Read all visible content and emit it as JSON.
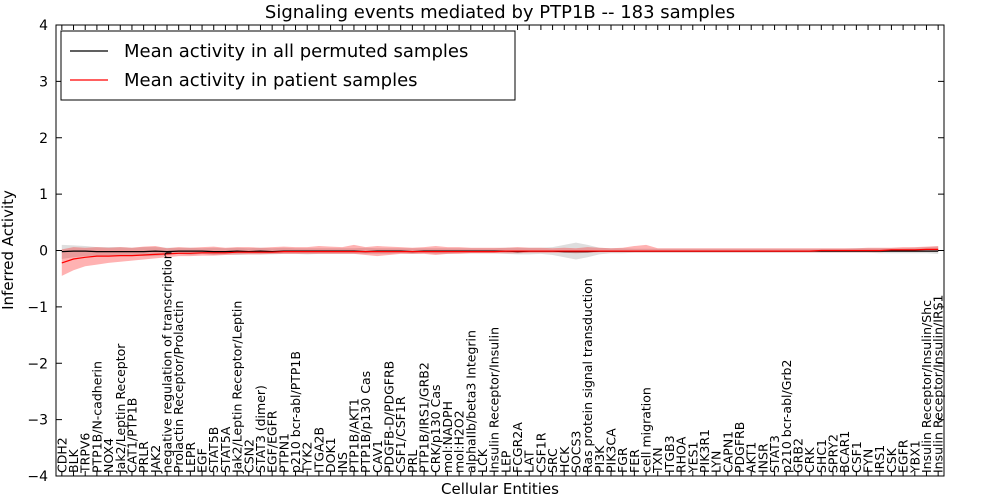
{
  "chart_data": {
    "type": "line",
    "title": "Signaling events mediated by PTP1B -- 183 samples",
    "xlabel": "Cellular Entities",
    "ylabel": "Inferred Activity",
    "ylim": [
      -4,
      4
    ],
    "yticks": [
      -4,
      -3,
      -2,
      -1,
      0,
      1,
      2,
      3,
      4
    ],
    "grid": false,
    "legend_position": "top-left",
    "categories": [
      "CDH2",
      "BLK",
      "TRPV6",
      "PTP1B/N-cadherin",
      "NOX4",
      "Jak2/Leptin Receptor",
      "CAT1/PTP1B",
      "PRLR",
      "JAK2",
      "negative regulation of transcription",
      "Prolactin Receptor/Prolactin",
      "LEPR",
      "EGF",
      "STAT5B",
      "STAT5A",
      "Jak2/Leptin Receptor/Leptin",
      "CSN2",
      "STAT3 (dimer)",
      "EGF/EGFR",
      "PTPN1",
      "p210 bcr-abl/PTP1B",
      "TYK2",
      "ITGA2B",
      "DOK1",
      "INS",
      "PTP1B/AKT1",
      "PTP1B/p130 Cas",
      "CAV1",
      "PDGFB-D/PDGFRB",
      "CSF1/CSF1R",
      "PRL",
      "PTP1B/IRS1/GRB2",
      "CRK/p130 Cas",
      "mol:NADPH",
      "mol:H2O2",
      "alphaIIb/beta3 Integrin",
      "LCK",
      "Insulin Receptor/Insulin",
      "LEP",
      "FCGR2A",
      "LAT",
      "CSF1R",
      "SRC",
      "HCK",
      "SOCS3",
      "Ras protein signal transduction",
      "PI3K",
      "PIK3CA",
      "FGR",
      "FER",
      "cell migration",
      "TXN",
      "ITGB3",
      "RHOA",
      "YES1",
      "PIK3R1",
      "LYN",
      "CAPN1",
      "PDGFRB",
      "AKT1",
      "INSR",
      "STAT3",
      "p210 bcr-abl/Grb2",
      "GRB2",
      "CRK",
      "SHC1",
      "SPRY2",
      "BCAR1",
      "CSF1",
      "FYN",
      "IRS1",
      "CSK",
      "EGFR",
      "YBX1",
      "Insulin Receptor/Insulin/Shc",
      "Insulin Receptor/Insulin/IRS1"
    ],
    "series": [
      {
        "name": "Mean activity in all permuted samples",
        "color": "#000000",
        "values": [
          -0.02,
          -0.01,
          -0.01,
          -0.02,
          -0.02,
          -0.02,
          -0.02,
          -0.02,
          -0.01,
          -0.02,
          -0.01,
          -0.01,
          -0.01,
          -0.02,
          -0.02,
          -0.01,
          -0.02,
          -0.01,
          -0.02,
          -0.01,
          -0.01,
          -0.01,
          -0.01,
          -0.01,
          -0.01,
          -0.01,
          -0.02,
          -0.01,
          -0.01,
          -0.01,
          -0.02,
          -0.01,
          -0.01,
          -0.01,
          -0.01,
          -0.01,
          -0.01,
          -0.01,
          -0.01,
          -0.02,
          -0.01,
          -0.01,
          -0.01,
          -0.02,
          -0.02,
          -0.02,
          -0.01,
          -0.01,
          -0.01,
          -0.01,
          -0.01,
          -0.01,
          -0.01,
          -0.01,
          -0.01,
          -0.01,
          -0.01,
          -0.01,
          -0.01,
          -0.01,
          -0.01,
          -0.01,
          -0.01,
          -0.01,
          -0.01,
          -0.01,
          -0.01,
          -0.01,
          -0.01,
          -0.01,
          -0.01,
          -0.01,
          -0.01,
          -0.01,
          -0.01,
          -0.01
        ],
        "band_lower": [
          -0.15,
          -0.12,
          -0.1,
          -0.09,
          -0.1,
          -0.09,
          -0.08,
          -0.1,
          -0.1,
          -0.08,
          -0.06,
          -0.08,
          -0.06,
          -0.08,
          -0.07,
          -0.08,
          -0.07,
          -0.07,
          -0.07,
          -0.06,
          -0.06,
          -0.07,
          -0.06,
          -0.06,
          -0.06,
          -0.06,
          -0.06,
          -0.06,
          -0.06,
          -0.05,
          -0.06,
          -0.05,
          -0.06,
          -0.06,
          -0.05,
          -0.05,
          -0.05,
          -0.05,
          -0.06,
          -0.07,
          -0.07,
          -0.06,
          -0.08,
          -0.12,
          -0.16,
          -0.12,
          -0.07,
          -0.05,
          -0.05,
          -0.04,
          -0.04,
          -0.04,
          -0.04,
          -0.04,
          -0.04,
          -0.04,
          -0.04,
          -0.04,
          -0.04,
          -0.04,
          -0.04,
          -0.04,
          -0.04,
          -0.04,
          -0.04,
          -0.04,
          -0.04,
          -0.04,
          -0.04,
          -0.04,
          -0.05,
          -0.05,
          -0.05,
          -0.05,
          -0.05,
          -0.06
        ],
        "band_upper": [
          0.1,
          0.09,
          0.08,
          0.06,
          0.06,
          0.06,
          0.05,
          0.06,
          0.06,
          0.05,
          0.05,
          0.05,
          0.04,
          0.05,
          0.04,
          0.05,
          0.04,
          0.05,
          0.04,
          0.05,
          0.04,
          0.04,
          0.04,
          0.04,
          0.04,
          0.04,
          0.05,
          0.04,
          0.04,
          0.04,
          0.04,
          0.04,
          0.04,
          0.04,
          0.04,
          0.04,
          0.04,
          0.04,
          0.05,
          0.05,
          0.05,
          0.05,
          0.06,
          0.1,
          0.14,
          0.1,
          0.05,
          0.04,
          0.04,
          0.03,
          0.03,
          0.03,
          0.03,
          0.03,
          0.03,
          0.03,
          0.03,
          0.03,
          0.03,
          0.03,
          0.03,
          0.03,
          0.03,
          0.03,
          0.03,
          0.03,
          0.03,
          0.03,
          0.04,
          0.04,
          0.04,
          0.04,
          0.04,
          0.05,
          0.06,
          0.07
        ]
      },
      {
        "name": "Mean activity in patient samples",
        "color": "#ff0000",
        "values": [
          -0.22,
          -0.15,
          -0.12,
          -0.1,
          -0.1,
          -0.09,
          -0.09,
          -0.08,
          -0.07,
          -0.06,
          -0.05,
          -0.05,
          -0.04,
          -0.04,
          -0.04,
          -0.03,
          -0.03,
          -0.03,
          -0.03,
          -0.02,
          -0.02,
          -0.02,
          -0.02,
          -0.02,
          -0.02,
          -0.02,
          -0.02,
          -0.02,
          -0.02,
          -0.02,
          -0.02,
          -0.02,
          -0.02,
          -0.02,
          -0.02,
          -0.02,
          -0.02,
          -0.02,
          -0.01,
          -0.01,
          -0.01,
          -0.01,
          -0.01,
          -0.01,
          -0.01,
          -0.01,
          -0.01,
          -0.01,
          -0.01,
          -0.01,
          -0.01,
          -0.01,
          -0.01,
          -0.01,
          -0.01,
          -0.01,
          -0.01,
          -0.01,
          -0.01,
          -0.01,
          -0.01,
          -0.01,
          -0.01,
          -0.01,
          -0.01,
          0.0,
          0.0,
          0.0,
          0.0,
          0.0,
          0.0,
          0.01,
          0.01,
          0.01,
          0.02,
          0.02
        ],
        "band_lower": [
          -0.45,
          -0.35,
          -0.28,
          -0.25,
          -0.22,
          -0.2,
          -0.18,
          -0.16,
          -0.14,
          -0.12,
          -0.1,
          -0.1,
          -0.09,
          -0.09,
          -0.08,
          -0.07,
          -0.07,
          -0.07,
          -0.06,
          -0.06,
          -0.06,
          -0.06,
          -0.06,
          -0.06,
          -0.06,
          -0.06,
          -0.08,
          -0.1,
          -0.08,
          -0.06,
          -0.06,
          -0.06,
          -0.08,
          -0.06,
          -0.06,
          -0.05,
          -0.05,
          -0.05,
          -0.05,
          -0.05,
          -0.04,
          -0.04,
          -0.04,
          -0.04,
          -0.05,
          -0.04,
          -0.03,
          -0.03,
          -0.03,
          -0.03,
          -0.03,
          -0.03,
          -0.03,
          -0.03,
          -0.03,
          -0.03,
          -0.03,
          -0.03,
          -0.03,
          -0.03,
          -0.03,
          -0.03,
          -0.03,
          -0.03,
          -0.03,
          -0.03,
          -0.03,
          -0.03,
          -0.03,
          -0.03,
          -0.03,
          -0.02,
          -0.02,
          -0.02,
          -0.02,
          -0.02
        ],
        "band_upper": [
          0.02,
          0.06,
          0.05,
          0.06,
          0.05,
          0.06,
          0.05,
          0.07,
          0.08,
          0.04,
          0.06,
          0.05,
          0.06,
          0.07,
          0.05,
          0.06,
          0.06,
          0.05,
          0.06,
          0.07,
          0.06,
          0.06,
          0.08,
          0.07,
          0.06,
          0.1,
          0.06,
          0.08,
          0.07,
          0.06,
          0.05,
          0.06,
          0.08,
          0.06,
          0.06,
          0.05,
          0.05,
          0.05,
          0.05,
          0.06,
          0.05,
          0.05,
          0.04,
          0.05,
          0.04,
          0.06,
          0.05,
          0.04,
          0.05,
          0.08,
          0.1,
          0.04,
          0.04,
          0.04,
          0.04,
          0.04,
          0.04,
          0.04,
          0.04,
          0.04,
          0.04,
          0.04,
          0.04,
          0.04,
          0.04,
          0.04,
          0.04,
          0.04,
          0.04,
          0.05,
          0.05,
          0.05,
          0.06,
          0.06,
          0.07,
          0.08
        ]
      }
    ]
  }
}
